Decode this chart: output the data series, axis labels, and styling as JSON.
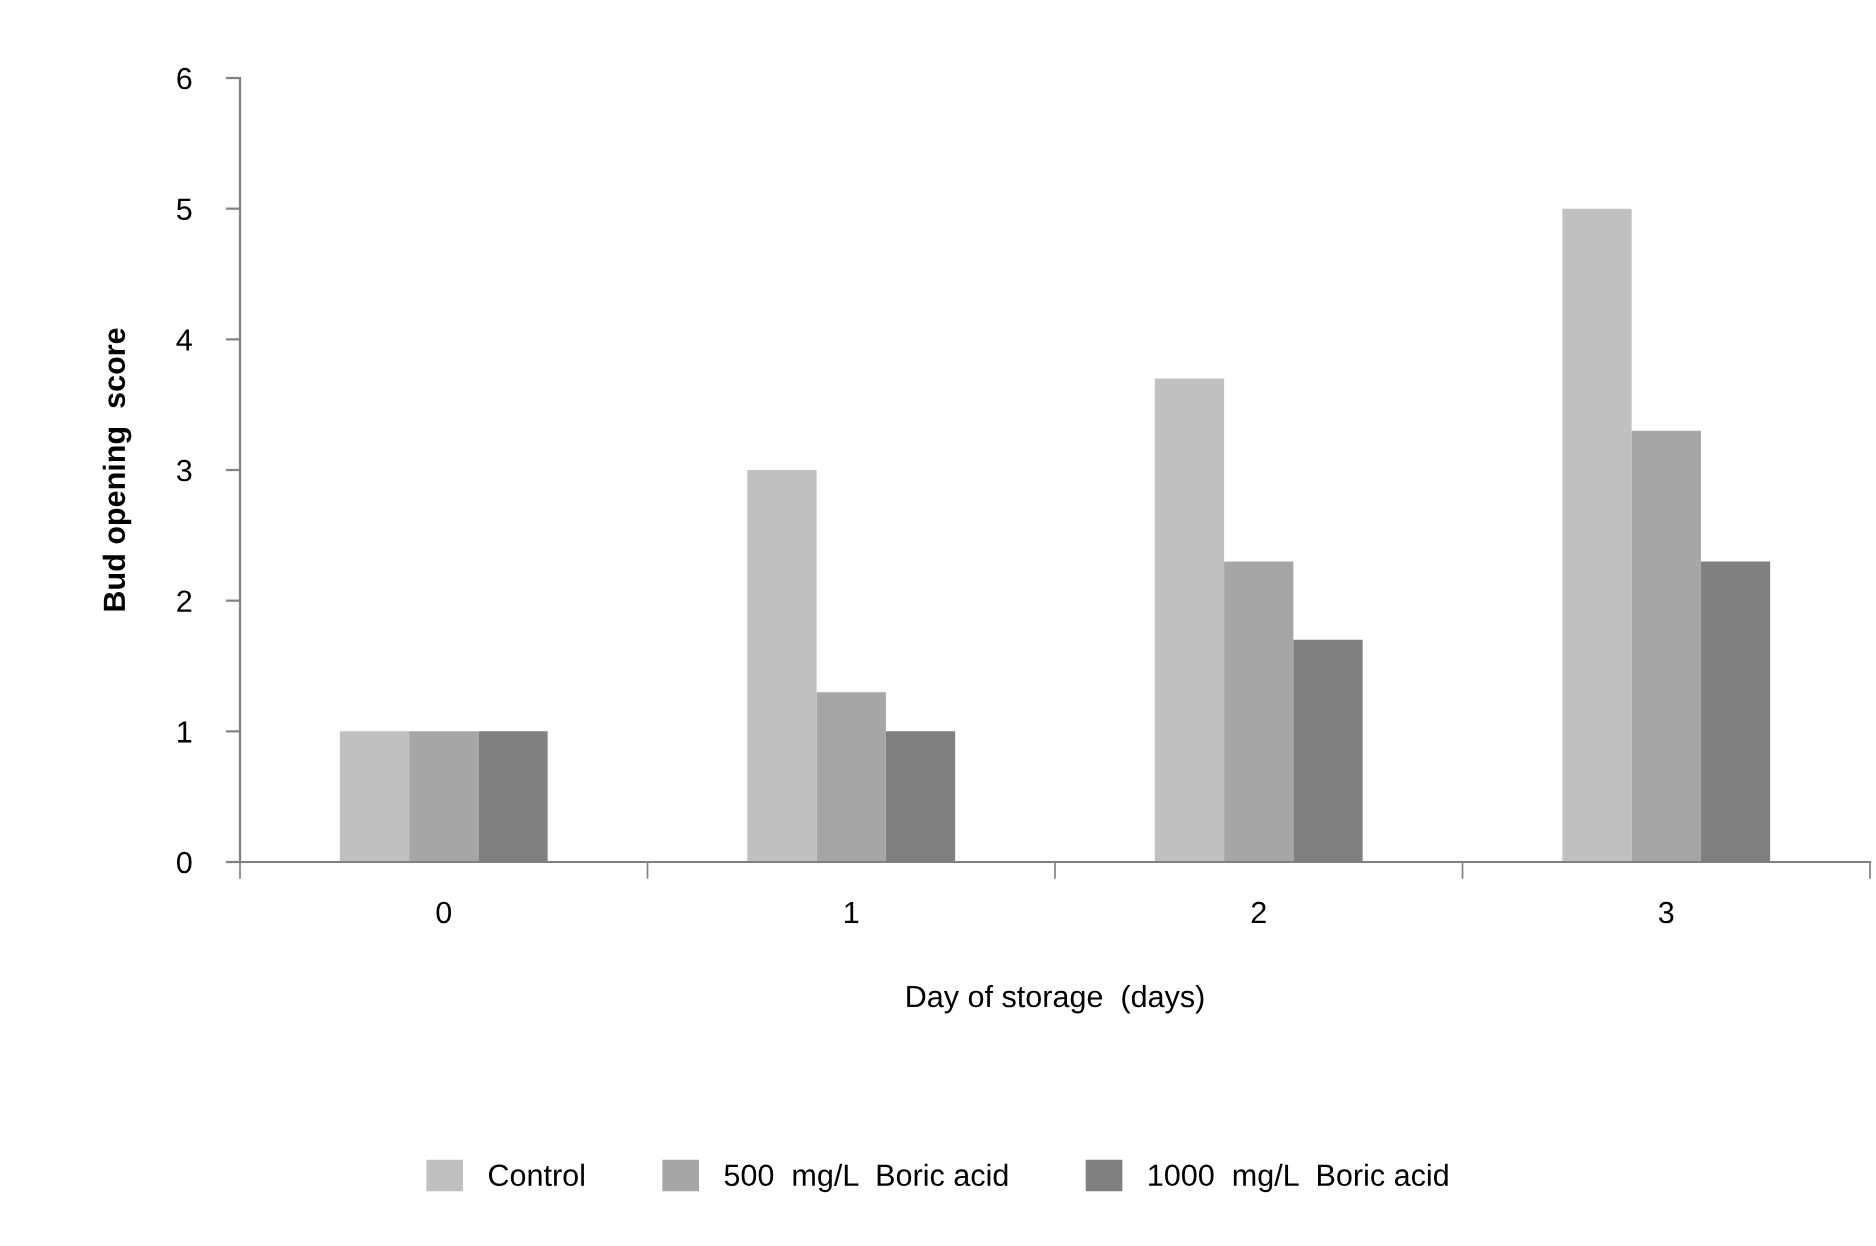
{
  "chart_data": {
    "type": "bar",
    "xlabel": "Day of storage  (days)",
    "ylabel": "Bud opening  score",
    "categories": [
      "0",
      "1",
      "2",
      "3"
    ],
    "series": [
      {
        "name": "Control",
        "color": "#c0c0c0",
        "values": [
          1,
          3,
          3.7,
          5
        ]
      },
      {
        "name": "500  mg/L  Boric acid",
        "color": "#a6a6a6",
        "values": [
          1,
          1.3,
          2.3,
          3.3
        ]
      },
      {
        "name": "1000  mg/L  Boric acid",
        "color": "#808080",
        "values": [
          1,
          1.0,
          1.7,
          2.3
        ]
      }
    ],
    "ylim": [
      0,
      6
    ],
    "yticks": [
      0,
      1,
      2,
      3,
      4,
      5,
      6
    ],
    "grid": false,
    "legend": "bottom"
  }
}
